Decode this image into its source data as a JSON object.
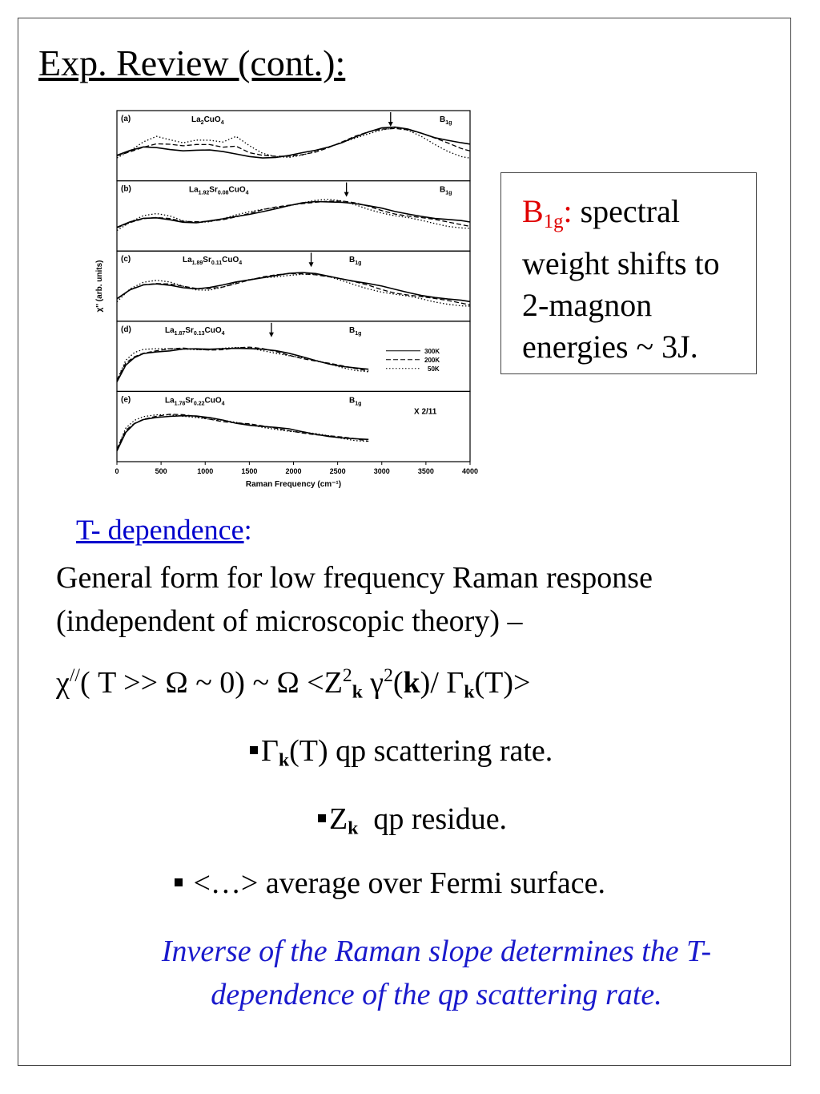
{
  "slide": {
    "title": "Exp. Review (cont.):",
    "callout": {
      "symbol": "B",
      "symbol_sub": "1g",
      "colon": ":",
      "lines": [
        "spectral",
        "weight shifts to",
        "2-magnon",
        "energies ~ 3J."
      ]
    },
    "tdep": {
      "link": "T- dependence",
      "colon": ":"
    },
    "general": [
      "General form for low frequency Raman response",
      "(independent of microscopic theory) –"
    ],
    "formula": {
      "chi": "χ",
      "chi_sup": "//",
      "a": "( T >> Ω ~ 0) ~ Ω <Z",
      "z_sup": "2",
      "k": "k",
      "gamma": " γ",
      "gamma_sup": "2",
      "paren_open": "(",
      "paren_close": ")/ Γ",
      "end": "(T)>"
    },
    "bullets": [
      {
        "pre": "Γ",
        "k": "k",
        "post": "(T) qp scattering rate."
      },
      {
        "pre": "Z",
        "k": "k",
        "post": "  qp residue."
      },
      {
        "pre": "",
        "k": "",
        "post": " <…> average over Fermi surface."
      }
    ],
    "note": [
      "Inverse of the Raman slope determines the T-",
      "dependence of the qp scattering rate."
    ]
  },
  "chart_data": {
    "type": "line",
    "xlabel": "Raman Frequency (cm⁻¹)",
    "ylabel": "χ'' (arb. units)",
    "xlim": [
      0,
      4000
    ],
    "xticks": [
      0,
      500,
      1000,
      1500,
      2000,
      2500,
      3000,
      3500,
      4000
    ],
    "legend": {
      "entries": [
        "300K",
        "200K",
        "50K"
      ],
      "styles": [
        "solid",
        "dashed",
        "dotted"
      ],
      "placement": "right of panel (d)"
    },
    "panels": [
      {
        "label": "(a)",
        "compound": {
          "parts": [
            [
              "La",
              ""
            ],
            [
              "",
              "2"
            ],
            [
              "CuO",
              ""
            ],
            [
              "",
              "4"
            ]
          ]
        },
        "symmetry": "B",
        "symmetry_sub": "1g",
        "arrow_x": 3100,
        "multiplier": "",
        "x": [
          0,
          150,
          300,
          450,
          600,
          750,
          900,
          1050,
          1200,
          1350,
          1500,
          1650,
          1800,
          1950,
          2100,
          2250,
          2400,
          2550,
          2700,
          2850,
          3000,
          3150,
          3300,
          3450,
          3600,
          3750,
          3900,
          4000
        ],
        "series": [
          {
            "name": "300K",
            "values": [
              0.35,
              0.42,
              0.48,
              0.48,
              0.46,
              0.44,
              0.44,
              0.43,
              0.4,
              0.37,
              0.34,
              0.32,
              0.32,
              0.34,
              0.38,
              0.43,
              0.5,
              0.58,
              0.67,
              0.74,
              0.8,
              0.82,
              0.8,
              0.74,
              0.66,
              0.6,
              0.55,
              0.53
            ]
          },
          {
            "name": "200K",
            "values": [
              0.33,
              0.41,
              0.5,
              0.56,
              0.54,
              0.5,
              0.52,
              0.53,
              0.5,
              0.52,
              0.4,
              0.34,
              0.32,
              0.33,
              0.37,
              0.42,
              0.49,
              0.57,
              0.66,
              0.74,
              0.8,
              0.82,
              0.79,
              0.72,
              0.63,
              0.55,
              0.47,
              0.44
            ]
          },
          {
            "name": "50K",
            "values": [
              0.32,
              0.44,
              0.58,
              0.66,
              0.6,
              0.56,
              0.62,
              0.62,
              0.58,
              0.66,
              0.5,
              0.38,
              0.34,
              0.33,
              0.36,
              0.41,
              0.48,
              0.56,
              0.65,
              0.73,
              0.79,
              0.81,
              0.76,
              0.66,
              0.54,
              0.43,
              0.34,
              0.3
            ]
          }
        ]
      },
      {
        "label": "(b)",
        "compound": {
          "parts": [
            [
              "La",
              ""
            ],
            [
              "",
              "1.92"
            ],
            [
              "Sr",
              ""
            ],
            [
              "",
              "0.08"
            ],
            [
              "CuO",
              ""
            ],
            [
              "",
              "4"
            ]
          ]
        },
        "symmetry": "B",
        "symmetry_sub": "1g",
        "arrow_x": 2600,
        "multiplier": "",
        "x": [
          0,
          150,
          300,
          450,
          600,
          750,
          900,
          1050,
          1200,
          1350,
          1500,
          1650,
          1800,
          1950,
          2100,
          2250,
          2400,
          2550,
          2700,
          2850,
          3000,
          3150,
          3300,
          3450,
          3600,
          3750,
          3900,
          4000
        ],
        "series": [
          {
            "name": "300K",
            "values": [
              0.32,
              0.4,
              0.46,
              0.48,
              0.46,
              0.42,
              0.4,
              0.42,
              0.45,
              0.5,
              0.55,
              0.6,
              0.64,
              0.68,
              0.72,
              0.75,
              0.76,
              0.76,
              0.73,
              0.68,
              0.63,
              0.58,
              0.55,
              0.52,
              0.48,
              0.45,
              0.42,
              0.4
            ]
          },
          {
            "name": "200K",
            "values": [
              0.3,
              0.4,
              0.48,
              0.5,
              0.47,
              0.41,
              0.4,
              0.42,
              0.46,
              0.51,
              0.56,
              0.61,
              0.65,
              0.69,
              0.73,
              0.76,
              0.77,
              0.76,
              0.72,
              0.67,
              0.61,
              0.56,
              0.52,
              0.48,
              0.44,
              0.4,
              0.37,
              0.35
            ]
          },
          {
            "name": "50K",
            "values": [
              0.28,
              0.42,
              0.52,
              0.54,
              0.5,
              0.43,
              0.41,
              0.43,
              0.47,
              0.52,
              0.57,
              0.62,
              0.66,
              0.7,
              0.74,
              0.77,
              0.78,
              0.76,
              0.71,
              0.64,
              0.57,
              0.51,
              0.47,
              0.43,
              0.39,
              0.35,
              0.32,
              0.3
            ]
          }
        ]
      },
      {
        "label": "(c)",
        "compound": {
          "parts": [
            [
              "La",
              ""
            ],
            [
              "",
              "1.89"
            ],
            [
              "Sr",
              ""
            ],
            [
              "",
              "0.11"
            ],
            [
              "CuO",
              ""
            ],
            [
              "",
              "4"
            ]
          ]
        },
        "symmetry": "B",
        "symmetry_sub": "1g",
        "arrow_x": 2200,
        "multiplier": "",
        "x": [
          0,
          150,
          300,
          450,
          600,
          750,
          900,
          1050,
          1200,
          1350,
          1500,
          1650,
          1800,
          1950,
          2100,
          2250,
          2400,
          2550,
          2700,
          2850,
          3000,
          3150,
          3300,
          3450,
          3600,
          3750,
          3900,
          4000
        ],
        "series": [
          {
            "name": "300K",
            "values": [
              0.3,
              0.44,
              0.52,
              0.55,
              0.54,
              0.5,
              0.47,
              0.48,
              0.52,
              0.58,
              0.63,
              0.67,
              0.7,
              0.72,
              0.73,
              0.72,
              0.69,
              0.65,
              0.6,
              0.55,
              0.5,
              0.45,
              0.41,
              0.37,
              0.33,
              0.29,
              0.26,
              0.24
            ]
          },
          {
            "name": "200K",
            "values": [
              0.28,
              0.45,
              0.55,
              0.57,
              0.55,
              0.5,
              0.46,
              0.47,
              0.51,
              0.57,
              0.62,
              0.66,
              0.69,
              0.72,
              0.73,
              0.72,
              0.68,
              0.63,
              0.57,
              0.52,
              0.46,
              0.41,
              0.37,
              0.33,
              0.29,
              0.26,
              0.23,
              0.21
            ]
          },
          {
            "name": "50K",
            "values": [
              0.26,
              0.48,
              0.58,
              0.6,
              0.57,
              0.51,
              0.46,
              0.46,
              0.5,
              0.56,
              0.61,
              0.65,
              0.68,
              0.71,
              0.72,
              0.71,
              0.66,
              0.6,
              0.54,
              0.48,
              0.42,
              0.37,
              0.33,
              0.29,
              0.25,
              0.22,
              0.19,
              0.17
            ]
          }
        ]
      },
      {
        "label": "(d)",
        "compound": {
          "parts": [
            [
              "La",
              ""
            ],
            [
              "",
              "1.87"
            ],
            [
              "Sr",
              ""
            ],
            [
              "",
              "0.13"
            ],
            [
              "CuO",
              ""
            ],
            [
              "",
              "4"
            ]
          ]
        },
        "symmetry": "B",
        "symmetry_sub": "1g",
        "arrow_x": 1750,
        "multiplier": "",
        "x": [
          0,
          100,
          200,
          300,
          450,
          600,
          750,
          900,
          1050,
          1200,
          1350,
          1500,
          1650,
          1800,
          1950,
          2100,
          2250,
          2400,
          2550,
          2700,
          2850
        ],
        "series": [
          {
            "name": "300K",
            "values": [
              0.08,
              0.35,
              0.48,
              0.56,
              0.6,
              0.62,
              0.64,
              0.63,
              0.62,
              0.64,
              0.66,
              0.66,
              0.64,
              0.6,
              0.55,
              0.5,
              0.45,
              0.4,
              0.35,
              0.31,
              0.28
            ]
          },
          {
            "name": "200K",
            "values": [
              0.1,
              0.4,
              0.52,
              0.58,
              0.61,
              0.63,
              0.64,
              0.63,
              0.63,
              0.64,
              0.66,
              0.66,
              0.63,
              0.59,
              0.54,
              0.49,
              0.44,
              0.39,
              0.34,
              0.3,
              0.27
            ]
          },
          {
            "name": "50K",
            "values": [
              0.12,
              0.46,
              0.58,
              0.62,
              0.63,
              0.64,
              0.65,
              0.64,
              0.63,
              0.64,
              0.65,
              0.65,
              0.62,
              0.58,
              0.53,
              0.48,
              0.43,
              0.38,
              0.33,
              0.29,
              0.26
            ]
          }
        ]
      },
      {
        "label": "(e)",
        "compound": {
          "parts": [
            [
              "La",
              ""
            ],
            [
              "",
              "1.78"
            ],
            [
              "Sr",
              ""
            ],
            [
              "",
              "0.22"
            ],
            [
              "CuO",
              ""
            ],
            [
              "",
              "4"
            ]
          ]
        },
        "symmetry": "B",
        "symmetry_sub": "1g",
        "arrow_x": null,
        "multiplier": "X 2/11",
        "x": [
          0,
          100,
          200,
          300,
          450,
          600,
          750,
          900,
          1050,
          1200,
          1350,
          1500,
          1650,
          1800,
          1950,
          2100,
          2250,
          2400,
          2550,
          2700,
          2850
        ],
        "series": [
          {
            "name": "300K",
            "values": [
              0.1,
              0.4,
              0.55,
              0.63,
              0.68,
              0.7,
              0.7,
              0.68,
              0.65,
              0.62,
              0.58,
              0.55,
              0.52,
              0.49,
              0.46,
              0.42,
              0.39,
              0.36,
              0.33,
              0.3,
              0.28
            ]
          },
          {
            "name": "200K",
            "values": [
              0.12,
              0.45,
              0.58,
              0.65,
              0.69,
              0.71,
              0.7,
              0.68,
              0.65,
              0.61,
              0.58,
              0.55,
              0.51,
              0.48,
              0.45,
              0.42,
              0.38,
              0.35,
              0.32,
              0.3,
              0.27
            ]
          },
          {
            "name": "50K",
            "values": [
              0.14,
              0.5,
              0.62,
              0.67,
              0.7,
              0.71,
              0.7,
              0.68,
              0.64,
              0.61,
              0.57,
              0.54,
              0.51,
              0.48,
              0.44,
              0.41,
              0.38,
              0.35,
              0.32,
              0.29,
              0.27
            ]
          }
        ]
      }
    ]
  }
}
